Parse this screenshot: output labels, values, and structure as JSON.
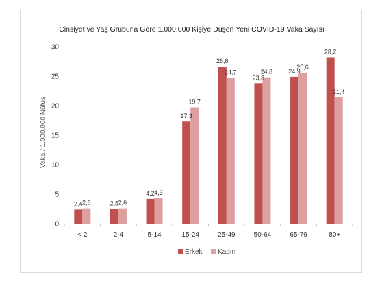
{
  "chart_data": {
    "type": "bar",
    "title": "Cinsiyet ve Yaş Grubuna Göre 1.000.000 Kişiye Düşen Yeni COVID-19 Vaka Sayısı",
    "xlabel": "",
    "ylabel": "Vaka / 1.000.000 Nüfus",
    "ylim": [
      0,
      30
    ],
    "yticks": [
      0,
      5,
      10,
      15,
      20,
      25,
      30
    ],
    "grid": false,
    "legend_position": "bottom",
    "categories": [
      "< 2",
      "2-4",
      "5-14",
      "15-24",
      "25-49",
      "50-64",
      "65-79",
      "80+"
    ],
    "series": [
      {
        "name": "Erkek",
        "color": "#c0504d",
        "values": [
          2.4,
          2.5,
          4.2,
          17.3,
          26.6,
          23.8,
          24.9,
          28.2
        ],
        "labels": [
          "2,4",
          "2,5",
          "4,2",
          "17,3",
          "26,6",
          "23,8",
          "24,9",
          "28,2"
        ]
      },
      {
        "name": "Kadın",
        "color": "#dda09e",
        "values": [
          2.6,
          2.6,
          4.3,
          19.7,
          24.7,
          24.8,
          25.6,
          21.4
        ],
        "labels": [
          "2,6",
          "2,6",
          "4,3",
          "19,7",
          "24,7",
          "24,8",
          "25,6",
          "21,4"
        ]
      }
    ]
  }
}
